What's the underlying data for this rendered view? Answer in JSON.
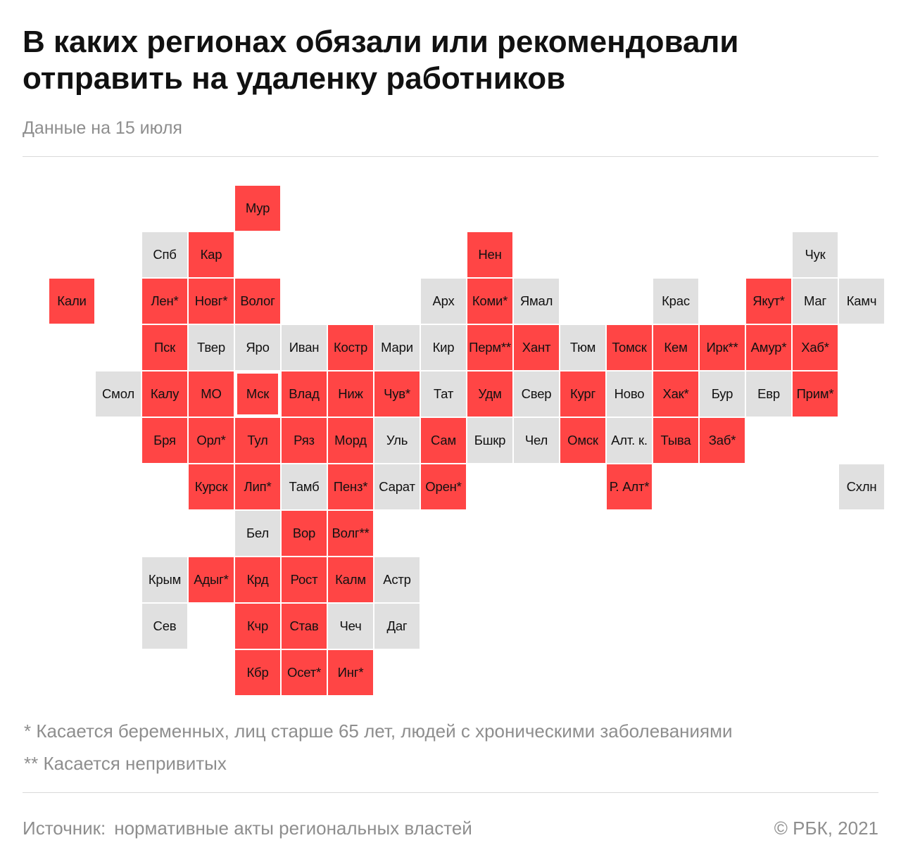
{
  "header": {
    "title_line1": "В каких регионах обязали или рекомендовали",
    "title_line2": "отправить на удаленку работников",
    "subtitle": "Данные на 15 июля"
  },
  "colors": {
    "required": "#ff4545",
    "not_required": "#e0e0e0"
  },
  "map": {
    "regions": [
      {
        "label": "Мур",
        "row": 0,
        "col": 5,
        "status": "red"
      },
      {
        "label": "Спб",
        "row": 1,
        "col": 3,
        "status": "grey"
      },
      {
        "label": "Кар",
        "row": 1,
        "col": 4,
        "status": "red"
      },
      {
        "label": "Нен",
        "row": 1,
        "col": 10,
        "status": "red"
      },
      {
        "label": "Чук",
        "row": 1,
        "col": 17,
        "status": "grey"
      },
      {
        "label": "Кали",
        "row": 2,
        "col": 1,
        "status": "red"
      },
      {
        "label": "Лен*",
        "row": 2,
        "col": 3,
        "status": "red"
      },
      {
        "label": "Новг*",
        "row": 2,
        "col": 4,
        "status": "red"
      },
      {
        "label": "Волог",
        "row": 2,
        "col": 5,
        "status": "red"
      },
      {
        "label": "Арх",
        "row": 2,
        "col": 9,
        "status": "grey"
      },
      {
        "label": "Коми*",
        "row": 2,
        "col": 10,
        "status": "red"
      },
      {
        "label": "Ямал",
        "row": 2,
        "col": 11,
        "status": "grey"
      },
      {
        "label": "Крас",
        "row": 2,
        "col": 14,
        "status": "grey"
      },
      {
        "label": "Якут*",
        "row": 2,
        "col": 16,
        "status": "red"
      },
      {
        "label": "Маг",
        "row": 2,
        "col": 17,
        "status": "grey"
      },
      {
        "label": "Камч",
        "row": 2,
        "col": 18,
        "status": "grey"
      },
      {
        "label": "Пск",
        "row": 3,
        "col": 3,
        "status": "red"
      },
      {
        "label": "Твер",
        "row": 3,
        "col": 4,
        "status": "grey"
      },
      {
        "label": "Яро",
        "row": 3,
        "col": 5,
        "status": "grey"
      },
      {
        "label": "Иван",
        "row": 3,
        "col": 6,
        "status": "grey"
      },
      {
        "label": "Костр",
        "row": 3,
        "col": 7,
        "status": "red"
      },
      {
        "label": "Мари",
        "row": 3,
        "col": 8,
        "status": "grey"
      },
      {
        "label": "Кир",
        "row": 3,
        "col": 9,
        "status": "grey"
      },
      {
        "label": "Перм**",
        "row": 3,
        "col": 10,
        "status": "red"
      },
      {
        "label": "Хант",
        "row": 3,
        "col": 11,
        "status": "red"
      },
      {
        "label": "Тюм",
        "row": 3,
        "col": 12,
        "status": "grey"
      },
      {
        "label": "Томск",
        "row": 3,
        "col": 13,
        "status": "red"
      },
      {
        "label": "Кем",
        "row": 3,
        "col": 14,
        "status": "red"
      },
      {
        "label": "Ирк**",
        "row": 3,
        "col": 15,
        "status": "red"
      },
      {
        "label": "Амур*",
        "row": 3,
        "col": 16,
        "status": "red"
      },
      {
        "label": "Хаб*",
        "row": 3,
        "col": 17,
        "status": "red"
      },
      {
        "label": "Смол",
        "row": 4,
        "col": 2,
        "status": "grey"
      },
      {
        "label": "Калу",
        "row": 4,
        "col": 3,
        "status": "red"
      },
      {
        "label": "МО",
        "row": 4,
        "col": 4,
        "status": "red"
      },
      {
        "label": "Мск",
        "row": 4,
        "col": 5,
        "status": "red",
        "outlined": true
      },
      {
        "label": "Влад",
        "row": 4,
        "col": 6,
        "status": "red"
      },
      {
        "label": "Ниж",
        "row": 4,
        "col": 7,
        "status": "red"
      },
      {
        "label": "Чув*",
        "row": 4,
        "col": 8,
        "status": "red"
      },
      {
        "label": "Тат",
        "row": 4,
        "col": 9,
        "status": "grey"
      },
      {
        "label": "Удм",
        "row": 4,
        "col": 10,
        "status": "red"
      },
      {
        "label": "Свер",
        "row": 4,
        "col": 11,
        "status": "grey"
      },
      {
        "label": "Кург",
        "row": 4,
        "col": 12,
        "status": "red"
      },
      {
        "label": "Ново",
        "row": 4,
        "col": 13,
        "status": "grey"
      },
      {
        "label": "Хак*",
        "row": 4,
        "col": 14,
        "status": "red"
      },
      {
        "label": "Бур",
        "row": 4,
        "col": 15,
        "status": "grey"
      },
      {
        "label": "Евр",
        "row": 4,
        "col": 16,
        "status": "grey"
      },
      {
        "label": "Прим*",
        "row": 4,
        "col": 17,
        "status": "red"
      },
      {
        "label": "Бря",
        "row": 5,
        "col": 3,
        "status": "red"
      },
      {
        "label": "Орл*",
        "row": 5,
        "col": 4,
        "status": "red"
      },
      {
        "label": "Тул",
        "row": 5,
        "col": 5,
        "status": "red"
      },
      {
        "label": "Ряз",
        "row": 5,
        "col": 6,
        "status": "red"
      },
      {
        "label": "Морд",
        "row": 5,
        "col": 7,
        "status": "red"
      },
      {
        "label": "Уль",
        "row": 5,
        "col": 8,
        "status": "grey"
      },
      {
        "label": "Сам",
        "row": 5,
        "col": 9,
        "status": "red"
      },
      {
        "label": "Бшкр",
        "row": 5,
        "col": 10,
        "status": "grey"
      },
      {
        "label": "Чел",
        "row": 5,
        "col": 11,
        "status": "grey"
      },
      {
        "label": "Омск",
        "row": 5,
        "col": 12,
        "status": "red"
      },
      {
        "label": "Алт. к.",
        "row": 5,
        "col": 13,
        "status": "grey"
      },
      {
        "label": "Тыва",
        "row": 5,
        "col": 14,
        "status": "red"
      },
      {
        "label": "Заб*",
        "row": 5,
        "col": 15,
        "status": "red"
      },
      {
        "label": "Курск",
        "row": 6,
        "col": 4,
        "status": "red"
      },
      {
        "label": "Лип*",
        "row": 6,
        "col": 5,
        "status": "red"
      },
      {
        "label": "Тамб",
        "row": 6,
        "col": 6,
        "status": "grey"
      },
      {
        "label": "Пенз*",
        "row": 6,
        "col": 7,
        "status": "red"
      },
      {
        "label": "Сарат",
        "row": 6,
        "col": 8,
        "status": "grey"
      },
      {
        "label": "Орен*",
        "row": 6,
        "col": 9,
        "status": "red"
      },
      {
        "label": "Р. Алт*",
        "row": 6,
        "col": 13,
        "status": "red"
      },
      {
        "label": "Схлн",
        "row": 6,
        "col": 18,
        "status": "grey"
      },
      {
        "label": "Бел",
        "row": 7,
        "col": 5,
        "status": "grey"
      },
      {
        "label": "Вор",
        "row": 7,
        "col": 6,
        "status": "red"
      },
      {
        "label": "Волг**",
        "row": 7,
        "col": 7,
        "status": "red"
      },
      {
        "label": "Крым",
        "row": 8,
        "col": 3,
        "status": "grey"
      },
      {
        "label": "Адыг*",
        "row": 8,
        "col": 4,
        "status": "red"
      },
      {
        "label": "Крд",
        "row": 8,
        "col": 5,
        "status": "red"
      },
      {
        "label": "Рост",
        "row": 8,
        "col": 6,
        "status": "red"
      },
      {
        "label": "Калм",
        "row": 8,
        "col": 7,
        "status": "red"
      },
      {
        "label": "Астр",
        "row": 8,
        "col": 8,
        "status": "grey"
      },
      {
        "label": "Сев",
        "row": 9,
        "col": 3,
        "status": "grey"
      },
      {
        "label": "Кчр",
        "row": 9,
        "col": 5,
        "status": "red"
      },
      {
        "label": "Став",
        "row": 9,
        "col": 6,
        "status": "red"
      },
      {
        "label": "Чеч",
        "row": 9,
        "col": 7,
        "status": "grey"
      },
      {
        "label": "Даг",
        "row": 9,
        "col": 8,
        "status": "grey"
      },
      {
        "label": "Кбр",
        "row": 10,
        "col": 5,
        "status": "red"
      },
      {
        "label": "Осет*",
        "row": 10,
        "col": 6,
        "status": "red"
      },
      {
        "label": "Инг*",
        "row": 10,
        "col": 7,
        "status": "red"
      }
    ]
  },
  "notes": {
    "note1": "* Касается беременных, лиц старше 65 лет, людей с хроническими заболеваниями",
    "note2": "** Касается непривитых"
  },
  "footer": {
    "source_label": "Источник:",
    "source_text": "нормативные акты региональных властей",
    "copyright": "©  РБК, 2021"
  }
}
